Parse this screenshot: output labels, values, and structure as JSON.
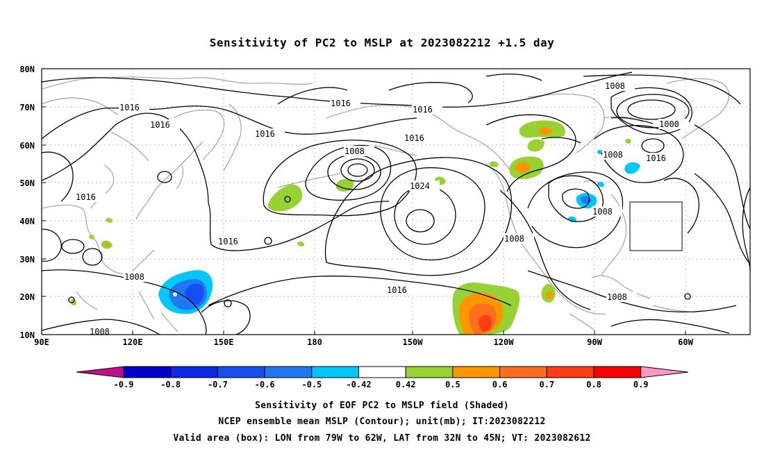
{
  "title": "Sensitivity of PC2 to MSLP at 2023082212 +1.5 day",
  "lat_labels": [
    "80N",
    "70N",
    "60N",
    "50N",
    "40N",
    "30N",
    "20N",
    "10N"
  ],
  "lon_labels": [
    "90E",
    "120E",
    "150E",
    "180",
    "150W",
    "120W",
    "90W",
    "60W"
  ],
  "contour_labels": [
    "1016",
    "1016",
    "1016",
    "1016",
    "1016",
    "1016",
    "1016",
    "1016",
    "1016",
    "1024",
    "1008",
    "1008",
    "1008",
    "1008",
    "1008",
    "1008",
    "1008",
    "1008",
    "1000",
    "1016"
  ],
  "colorbar": {
    "labels": [
      "-0.9",
      "-0.8",
      "-0.7",
      "-0.6",
      "-0.5",
      "-0.42",
      "0.42",
      "0.5",
      "0.6",
      "0.7",
      "0.8",
      "0.9"
    ],
    "colors": [
      "#c0108c",
      "#0000c8",
      "#0a28e6",
      "#1450f0",
      "#1e78f0",
      "#00c8ff",
      "#ffffff",
      "#96d232",
      "#ff9600",
      "#ff6e1e",
      "#ff3c14",
      "#ff0000",
      "#ff96c8"
    ]
  },
  "box": {
    "lon_west": -79,
    "lon_east": -62,
    "lat_south": 32,
    "lat_north": 45
  },
  "footer": [
    "Sensitivity of EOF PC2 to MSLP field (Shaded)",
    "NCEP ensemble mean MSLP (Contour); unit(mb); IT:2023082212",
    "Valid area (box): LON from 79W to 62W, LAT from 32N to 45N; VT: 2023082612"
  ]
}
